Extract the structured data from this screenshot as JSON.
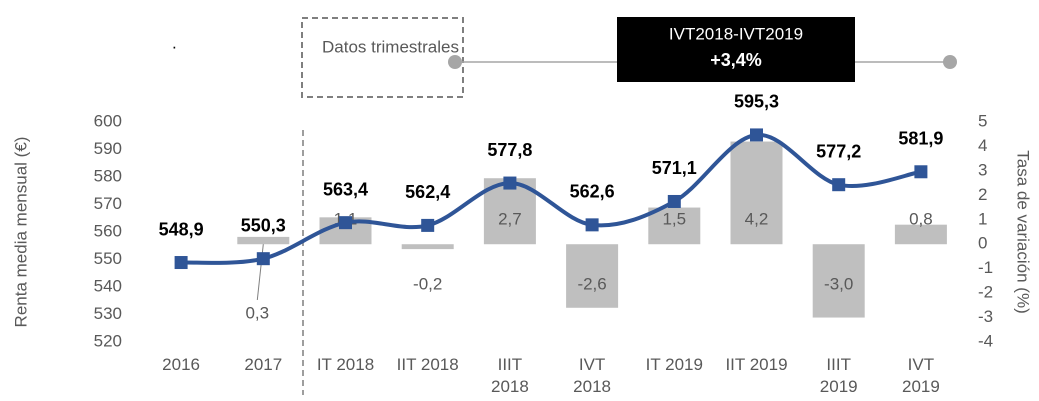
{
  "chart_data": {
    "type": "bar_line",
    "note": ".",
    "annotation": "Datos trimestrales",
    "callout_title": "IVT2018-IVT2019",
    "callout_value": "+3,4%",
    "y_label": "Renta media mensual (€)",
    "y2_label": "Tasa de variación (%)",
    "categories": [
      "2016",
      "2017",
      "IT 2018",
      "IIT 2018",
      "IIIT\n2018",
      "IVT\n2018",
      "IT 2019",
      "IIT 2019",
      "IIIT\n2019",
      "IVT\n2019"
    ],
    "series": [
      {
        "name": "Tasa de variación",
        "type": "bar",
        "axis": "y2",
        "color": "#bfbfbf",
        "values": [
          null,
          0.3,
          1.1,
          -0.2,
          2.7,
          -2.6,
          1.5,
          4.2,
          -3.0,
          0.8
        ],
        "value_labels": [
          null,
          "0,3",
          "1,1",
          "-0,2",
          "2,7",
          "-2,6",
          "1,5",
          "4,2",
          "-3,0",
          "0,8"
        ]
      },
      {
        "name": "Renta media mensual",
        "type": "line",
        "axis": "y",
        "color": "#2f5597",
        "values": [
          548.9,
          550.3,
          563.4,
          562.4,
          577.8,
          562.6,
          571.1,
          595.3,
          577.2,
          581.9
        ],
        "value_labels": [
          "548,9",
          "550,3",
          "563,4",
          "562,4",
          "577,8",
          "562,6",
          "571,1",
          "595,3",
          "577,2",
          "581,9"
        ]
      }
    ],
    "ylim": [
      520,
      600
    ],
    "yticks": [
      520,
      530,
      540,
      550,
      560,
      570,
      580,
      590,
      600
    ],
    "y2lim": [
      -4,
      5
    ],
    "y2ticks": [
      -4,
      -3,
      -2,
      -1,
      0,
      1,
      2,
      3,
      4,
      5
    ]
  }
}
